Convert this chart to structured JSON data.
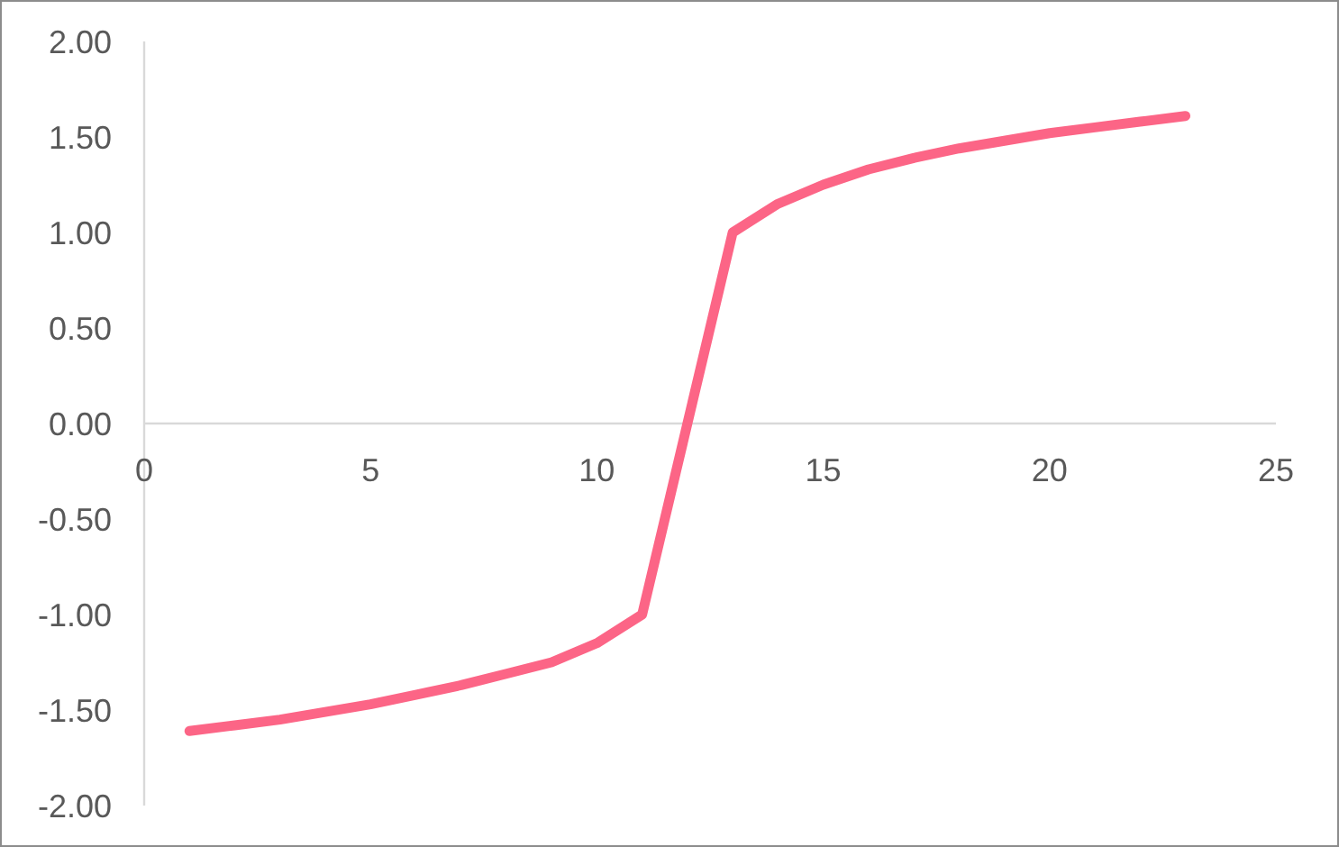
{
  "chart_data": {
    "type": "line",
    "x": [
      1,
      2,
      3,
      4,
      5,
      6,
      7,
      8,
      9,
      10,
      11,
      12,
      13,
      14,
      15,
      16,
      17,
      18,
      19,
      20,
      21,
      22,
      23
    ],
    "series": [
      {
        "color": "#fc6586",
        "values": [
          -1.61,
          -1.58,
          -1.55,
          -1.51,
          -1.47,
          -1.42,
          -1.37,
          -1.31,
          -1.25,
          -1.15,
          -1.0,
          0,
          1.0,
          1.15,
          1.25,
          1.33,
          1.39,
          1.44,
          1.48,
          1.52,
          1.55,
          1.58,
          1.61
        ]
      }
    ],
    "xlim": [
      0,
      25
    ],
    "xticks": [
      0,
      5,
      10,
      15,
      20,
      25
    ],
    "ylim": [
      -2,
      2
    ],
    "yticks": [
      {
        "value": 2,
        "label": "2.00"
      },
      {
        "value": 1.5,
        "label": "1.50"
      },
      {
        "value": 1,
        "label": "1.00"
      },
      {
        "value": 0.5,
        "label": "0.50"
      },
      {
        "value": 0,
        "label": "0.00"
      },
      {
        "value": -0.5,
        "label": "-0.50"
      },
      {
        "value": -1,
        "label": "-1.00"
      },
      {
        "value": -1.5,
        "label": "-1.50"
      },
      {
        "value": -2,
        "label": "-2.00"
      }
    ],
    "line_style": "solid"
  }
}
